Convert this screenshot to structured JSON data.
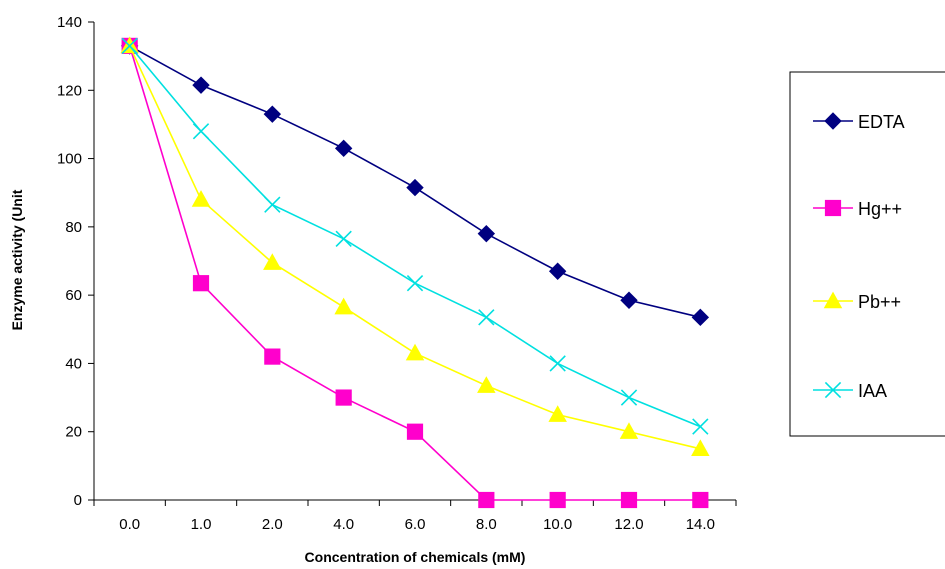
{
  "chart_data": {
    "type": "line",
    "title": "",
    "xlabel": "Concentration of chemicals (mM)",
    "ylabel": "Enzyme activity (Unit",
    "categories": [
      "0.0",
      "1.0",
      "2.0",
      "4.0",
      "6.0",
      "8.0",
      "10.0",
      "12.0",
      "14.0"
    ],
    "ylim": [
      0,
      140
    ],
    "yticks": [
      "0",
      "20",
      "40",
      "60",
      "80",
      "100",
      "120",
      "140"
    ],
    "grid": false,
    "legend_position": "right",
    "series": [
      {
        "name": "EDTA",
        "color": "#000080",
        "marker": "diamond",
        "values": [
          133,
          121.5,
          113,
          103,
          91.5,
          78,
          67,
          58.5,
          53.5
        ]
      },
      {
        "name": "Hg++",
        "color": "#ff00cc",
        "marker": "square",
        "values": [
          133,
          63.5,
          42,
          30,
          20,
          0,
          0,
          0,
          0
        ]
      },
      {
        "name": "Pb++",
        "color": "#ffff00",
        "marker": "triangle",
        "values": [
          133,
          88,
          69.5,
          56.5,
          43,
          33.5,
          25,
          20,
          15
        ]
      },
      {
        "name": "IAA",
        "color": "#00e0e0",
        "marker": "cross",
        "values": [
          133,
          108,
          86.5,
          76.5,
          63.5,
          53.5,
          40,
          30,
          21.5
        ]
      }
    ]
  }
}
